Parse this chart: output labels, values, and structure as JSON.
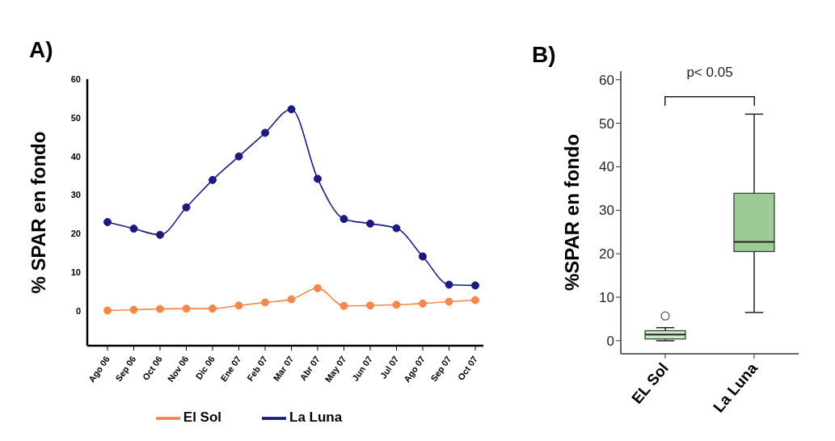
{
  "chart_data": [
    {
      "type": "line",
      "title": "A)",
      "categories": [
        "Ago 06",
        "Sep 06",
        "Oct 06",
        "Nov 06",
        "Dic 06",
        "Ene 07",
        "Feb 07",
        "Mar 07",
        "Abr 07",
        "May 07",
        "Jun 07",
        "Jul 07",
        "Ago 07",
        "Sep 07",
        "Oct 07"
      ],
      "series": [
        {
          "name": "El Sol",
          "color": "#f4874b",
          "values": [
            0.1,
            0.3,
            0.5,
            0.6,
            0.6,
            1.4,
            2.2,
            3.0,
            5.9,
            1.3,
            1.4,
            1.6,
            1.9,
            2.4,
            2.8
          ]
        },
        {
          "name": "La Luna",
          "color": "#1a1a80",
          "values": [
            23,
            21.3,
            19.7,
            26.8,
            33.9,
            40,
            46.1,
            52.2,
            34.2,
            23.8,
            22.6,
            21.4,
            14.1,
            6.8,
            6.6
          ]
        }
      ],
      "ylabel": "% SPAR en fondo",
      "ylim": [
        -9,
        60
      ],
      "yticks": [
        0,
        10,
        20,
        30,
        40,
        50,
        60
      ],
      "marker": "circle",
      "legend": "bottom"
    },
    {
      "type": "box",
      "title": "B)",
      "categories": [
        "EL Sol",
        "La Luna"
      ],
      "boxes": [
        {
          "low": 0,
          "q1": 0.4,
          "median": 1.4,
          "q3": 2.3,
          "high": 3.0,
          "outliers": [
            5.7
          ]
        },
        {
          "low": 6.5,
          "q1": 20.5,
          "median": 22.7,
          "q3": 33.9,
          "high": 52.1
        }
      ],
      "colors": [
        "#c8eac4",
        "#9ccb96"
      ],
      "ylabel": "%SPAR en fondo",
      "ylim": [
        -3,
        62
      ],
      "yticks": [
        0,
        10,
        20,
        30,
        40,
        50,
        60
      ],
      "annotations": [
        "p< 0.05"
      ]
    }
  ]
}
